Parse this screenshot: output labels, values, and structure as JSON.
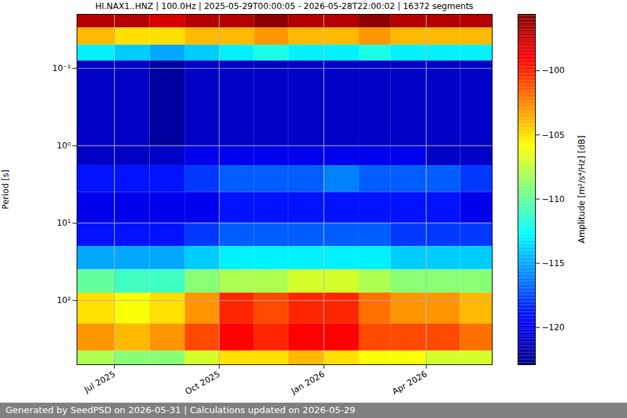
{
  "chart_data": {
    "type": "heatmap",
    "title": "HI.NAX1..HNZ | 100.0Hz | 2025-05-29T00:00:05 - 2026-05-28T22:00:02 | 16372 segments",
    "footer": "Generated by SeedPSD on 2026-05-31 | Calculations updated on 2026-05-29",
    "y_label": "Period [s]",
    "colorbar_label": "Amplitude [m²/s⁴/Hz] [dB]",
    "x_bins": [
      "2025-05-29T00:00:05",
      "2025-07-01",
      "2025-08-01",
      "2025-09-01",
      "2025-10-01",
      "2025-11-01",
      "2025-12-01",
      "2026-01-01",
      "2026-02-01",
      "2026-03-01",
      "2026-04-01",
      "2026-05-01",
      "2026-05-28T22:00:02"
    ],
    "y_bins": [
      0.02,
      0.03,
      0.05,
      0.08,
      1,
      1.8,
      4,
      10,
      20,
      40,
      80,
      200,
      450,
      676
    ],
    "cells": [
      [
        -97,
        -97,
        -98,
        -97,
        -97,
        -96,
        -97,
        -97,
        -96,
        -97,
        -97,
        -97
      ],
      [
        -104,
        -105,
        -105,
        -104,
        -104,
        -103,
        -104,
        -104,
        -103,
        -104,
        -104,
        -104
      ],
      [
        -113,
        -114,
        -115,
        -114,
        -113,
        -112,
        -113,
        -113,
        -112,
        -113,
        -113,
        -113
      ],
      [
        -121,
        -121,
        -122,
        -121,
        -121,
        -121,
        -121,
        -121,
        -121,
        -121,
        -121,
        -121
      ],
      [
        -121,
        -121,
        -121,
        -120,
        -120,
        -120,
        -120,
        -120,
        -120,
        -120,
        -121,
        -121
      ],
      [
        -119,
        -119,
        -119,
        -118,
        -117,
        -117,
        -117,
        -116,
        -117,
        -117,
        -117,
        -118
      ],
      [
        -120,
        -120,
        -120,
        -120,
        -119,
        -119,
        -119,
        -119,
        -119,
        -119,
        -119,
        -120
      ],
      [
        -119,
        -119,
        -119,
        -118,
        -117,
        -117,
        -117,
        -117,
        -117,
        -118,
        -118,
        -118
      ],
      [
        -115,
        -115,
        -115,
        -114,
        -113,
        -113,
        -113,
        -113,
        -113,
        -114,
        -114,
        -114
      ],
      [
        -110,
        -111,
        -111,
        -109,
        -108,
        -108,
        -107,
        -107,
        -108,
        -109,
        -109,
        -109
      ],
      [
        -105,
        -106,
        -105,
        -103,
        -100,
        -101,
        -100,
        -100,
        -102,
        -103,
        -103,
        -104
      ],
      [
        -103,
        -104,
        -103,
        -101,
        -99,
        -100,
        -99,
        -99,
        -101,
        -101,
        -101,
        -102
      ],
      [
        -108,
        -109,
        -109,
        -107,
        -105,
        -105,
        -104,
        -105,
        -106,
        -106,
        -107,
        -107
      ]
    ],
    "xlim": [
      "2025-05-29T00:00:05",
      "2026-05-28T22:00:02"
    ],
    "xticks": [
      {
        "value": "2025-07-01",
        "label": "Jul 2025"
      },
      {
        "value": "2025-10-01",
        "label": "Oct 2025"
      },
      {
        "value": "2026-01-01",
        "label": "Jan 2026"
      },
      {
        "value": "2026-04-01",
        "label": "Apr 2026"
      }
    ],
    "ylim": [
      0.02,
      676
    ],
    "yticks": [
      {
        "value": 0.1,
        "label": "10⁻¹"
      },
      {
        "value": 1,
        "label": "10⁰"
      },
      {
        "value": 10,
        "label": "10¹"
      },
      {
        "value": 100,
        "label": "10²"
      }
    ],
    "log": "y",
    "grid": true,
    "color": "jet",
    "colorbar_lim": [
      -122.9,
      -95.6
    ],
    "colorbar_ticks": [
      -100,
      -105,
      -110,
      -115,
      -120
    ]
  }
}
